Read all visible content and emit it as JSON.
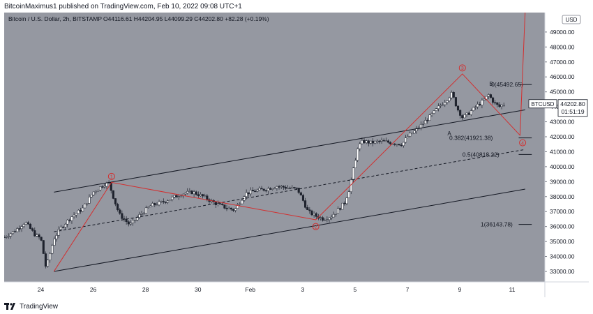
{
  "header": {
    "publisher": "BitcoinMaximus1 published on TradingView.com, Feb 10, 2022 09:08 UTC+1"
  },
  "footer": {
    "brand": "TradingView"
  },
  "colors": {
    "plot_bg": "#9598a1",
    "axis_bg": "#ffffff",
    "wave": "#d32f2f",
    "channel": "#131722",
    "candle": "#ffffff",
    "price_tag": "#ffffff"
  },
  "chart_data": {
    "type": "candlestick",
    "title": "Bitcoin / U.S. Dollar, 2h, BITSTAMP",
    "ohlc_label": "O44116.61 H44204.95 L44099.29 C44202.80 +82.28 (+0.19%)",
    "symbol": "BTCUSD",
    "currency": "USD",
    "last_price": "44202.80",
    "countdown": "01:51:19",
    "ylim": [
      32300,
      50300
    ],
    "y_ticks": [
      "33000.00",
      "34000.00",
      "35000.00",
      "36000.00",
      "37000.00",
      "38000.00",
      "39000.00",
      "40000.00",
      "41000.00",
      "42000.00",
      "43000.00",
      "44000.00",
      "45000.00",
      "46000.00",
      "47000.00",
      "48000.00",
      "49000.00"
    ],
    "x_ticks": [
      {
        "label": "24",
        "x": 0
      },
      {
        "label": "26",
        "x": 2
      },
      {
        "label": "28",
        "x": 4
      },
      {
        "label": "30",
        "x": 6
      },
      {
        "label": "Feb",
        "x": 8
      },
      {
        "label": "3",
        "x": 10
      },
      {
        "label": "5",
        "x": 12
      },
      {
        "label": "7",
        "x": 14
      },
      {
        "label": "9",
        "x": 16
      },
      {
        "label": "11",
        "x": 18
      }
    ],
    "x_unit": "days from Jan 24 2022",
    "close_path": [
      [
        -1.4,
        35300
      ],
      [
        -1.0,
        35700
      ],
      [
        -0.6,
        36300
      ],
      [
        -0.2,
        35400
      ],
      [
        0.0,
        35200
      ],
      [
        0.2,
        33200
      ],
      [
        0.5,
        35200
      ],
      [
        0.8,
        36000
      ],
      [
        1.2,
        36700
      ],
      [
        1.6,
        37200
      ],
      [
        2.0,
        38300
      ],
      [
        2.4,
        38800
      ],
      [
        2.6,
        38900
      ],
      [
        2.8,
        37800
      ],
      [
        3.0,
        36800
      ],
      [
        3.4,
        36100
      ],
      [
        3.8,
        36800
      ],
      [
        4.2,
        37400
      ],
      [
        4.6,
        37600
      ],
      [
        5.0,
        37900
      ],
      [
        5.4,
        38200
      ],
      [
        5.8,
        38300
      ],
      [
        6.2,
        38000
      ],
      [
        6.6,
        37600
      ],
      [
        7.0,
        37300
      ],
      [
        7.4,
        37100
      ],
      [
        7.8,
        38200
      ],
      [
        8.2,
        38400
      ],
      [
        8.6,
        38500
      ],
      [
        9.0,
        38700
      ],
      [
        9.4,
        38600
      ],
      [
        9.8,
        38500
      ],
      [
        10.0,
        37800
      ],
      [
        10.2,
        37000
      ],
      [
        10.5,
        36700
      ],
      [
        10.8,
        36500
      ],
      [
        11.1,
        36700
      ],
      [
        11.4,
        37200
      ],
      [
        11.6,
        37600
      ],
      [
        11.8,
        38600
      ],
      [
        11.9,
        39600
      ],
      [
        12.0,
        40200
      ],
      [
        12.1,
        41300
      ],
      [
        12.3,
        41700
      ],
      [
        12.6,
        41600
      ],
      [
        13.0,
        41700
      ],
      [
        13.4,
        41600
      ],
      [
        13.8,
        41500
      ],
      [
        14.0,
        42000
      ],
      [
        14.3,
        42400
      ],
      [
        14.6,
        42900
      ],
      [
        15.0,
        43600
      ],
      [
        15.2,
        44000
      ],
      [
        15.5,
        44500
      ],
      [
        15.7,
        44900
      ],
      [
        15.9,
        43900
      ],
      [
        16.1,
        43300
      ],
      [
        16.3,
        43500
      ],
      [
        16.6,
        44000
      ],
      [
        16.9,
        44400
      ],
      [
        17.1,
        44800
      ],
      [
        17.3,
        44300
      ],
      [
        17.5,
        44000
      ],
      [
        17.7,
        44200
      ]
    ],
    "channel": {
      "upper": [
        [
          0.5,
          38300
        ],
        [
          18.5,
          43800
        ]
      ],
      "lower": [
        [
          0.5,
          33000
        ],
        [
          18.5,
          38500
        ]
      ],
      "middle": [
        [
          0.5,
          35650
        ],
        [
          18.5,
          41150
        ]
      ]
    },
    "wave_count": {
      "points": [
        [
          0.5,
          33000
        ],
        [
          2.7,
          38950
        ],
        [
          10.5,
          36450
        ],
        [
          16.1,
          46200
        ],
        [
          18.3,
          42100
        ],
        [
          18.5,
          50500
        ]
      ],
      "labels": [
        {
          "text": "1",
          "x": 2.7,
          "y": 39350
        },
        {
          "text": "2",
          "x": 10.5,
          "y": 36000
        },
        {
          "text": "3",
          "x": 16.1,
          "y": 46600
        },
        {
          "text": "4",
          "x": 18.4,
          "y": 41600
        }
      ],
      "abc": [
        {
          "text": "B",
          "x": 17.2,
          "y": 45400
        },
        {
          "text": "A",
          "x": 15.6,
          "y": 42100
        }
      ]
    },
    "fib_levels": [
      {
        "label": "0(45492.65)",
        "value": 45492.65,
        "x_label": 17.2
      },
      {
        "label": "0.382(41921.38)",
        "value": 41921.38,
        "x_label": 15.6
      },
      {
        "label": "0.5(40818.22)",
        "value": 40818.22,
        "x_label": 16.1
      },
      {
        "label": "1(36143.78)",
        "value": 36143.78,
        "x_label": 16.8
      }
    ]
  }
}
